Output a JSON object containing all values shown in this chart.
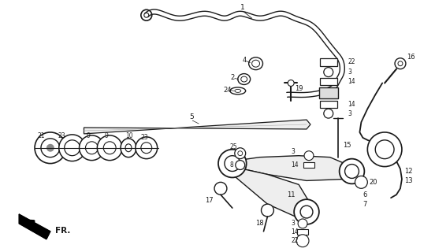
{
  "bg_color": "#ffffff",
  "line_color": "#1a1a1a",
  "fig_width": 5.52,
  "fig_height": 3.2,
  "dpi": 100,
  "arrow_text": "FR."
}
